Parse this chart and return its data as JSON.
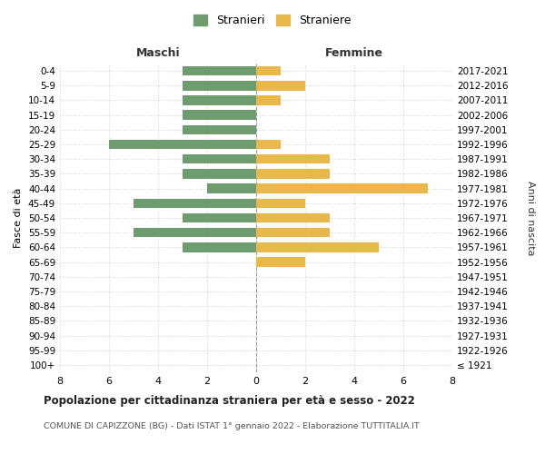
{
  "age_groups": [
    "100+",
    "95-99",
    "90-94",
    "85-89",
    "80-84",
    "75-79",
    "70-74",
    "65-69",
    "60-64",
    "55-59",
    "50-54",
    "45-49",
    "40-44",
    "35-39",
    "30-34",
    "25-29",
    "20-24",
    "15-19",
    "10-14",
    "5-9",
    "0-4"
  ],
  "birth_years": [
    "≤ 1921",
    "1922-1926",
    "1927-1931",
    "1932-1936",
    "1937-1941",
    "1942-1946",
    "1947-1951",
    "1952-1956",
    "1957-1961",
    "1962-1966",
    "1967-1971",
    "1972-1976",
    "1977-1981",
    "1982-1986",
    "1987-1991",
    "1992-1996",
    "1997-2001",
    "2002-2006",
    "2007-2011",
    "2012-2016",
    "2017-2021"
  ],
  "maschi": [
    0,
    0,
    0,
    0,
    0,
    0,
    0,
    0,
    3,
    5,
    3,
    5,
    2,
    3,
    3,
    6,
    3,
    3,
    3,
    3,
    3
  ],
  "femmine": [
    0,
    0,
    0,
    0,
    0,
    0,
    0,
    2,
    5,
    3,
    3,
    2,
    7,
    3,
    3,
    1,
    0,
    0,
    1,
    2,
    1
  ],
  "color_maschi": "#6e9c6e",
  "color_femmine": "#e8b84b",
  "title": "Popolazione per cittadinanza straniera per età e sesso - 2022",
  "subtitle": "COMUNE DI CAPIZZONE (BG) - Dati ISTAT 1° gennaio 2022 - Elaborazione TUTTITALIA.IT",
  "xlabel_left": "Maschi",
  "xlabel_right": "Femmine",
  "ylabel": "Fasce di età",
  "ylabel_right": "Anni di nascita",
  "legend_maschi": "Stranieri",
  "legend_femmine": "Straniere",
  "xlim": 8,
  "xticks": [
    -8,
    -6,
    -4,
    -2,
    0,
    2,
    4,
    6,
    8
  ],
  "background_color": "#ffffff",
  "grid_color": "#d0d0d0"
}
